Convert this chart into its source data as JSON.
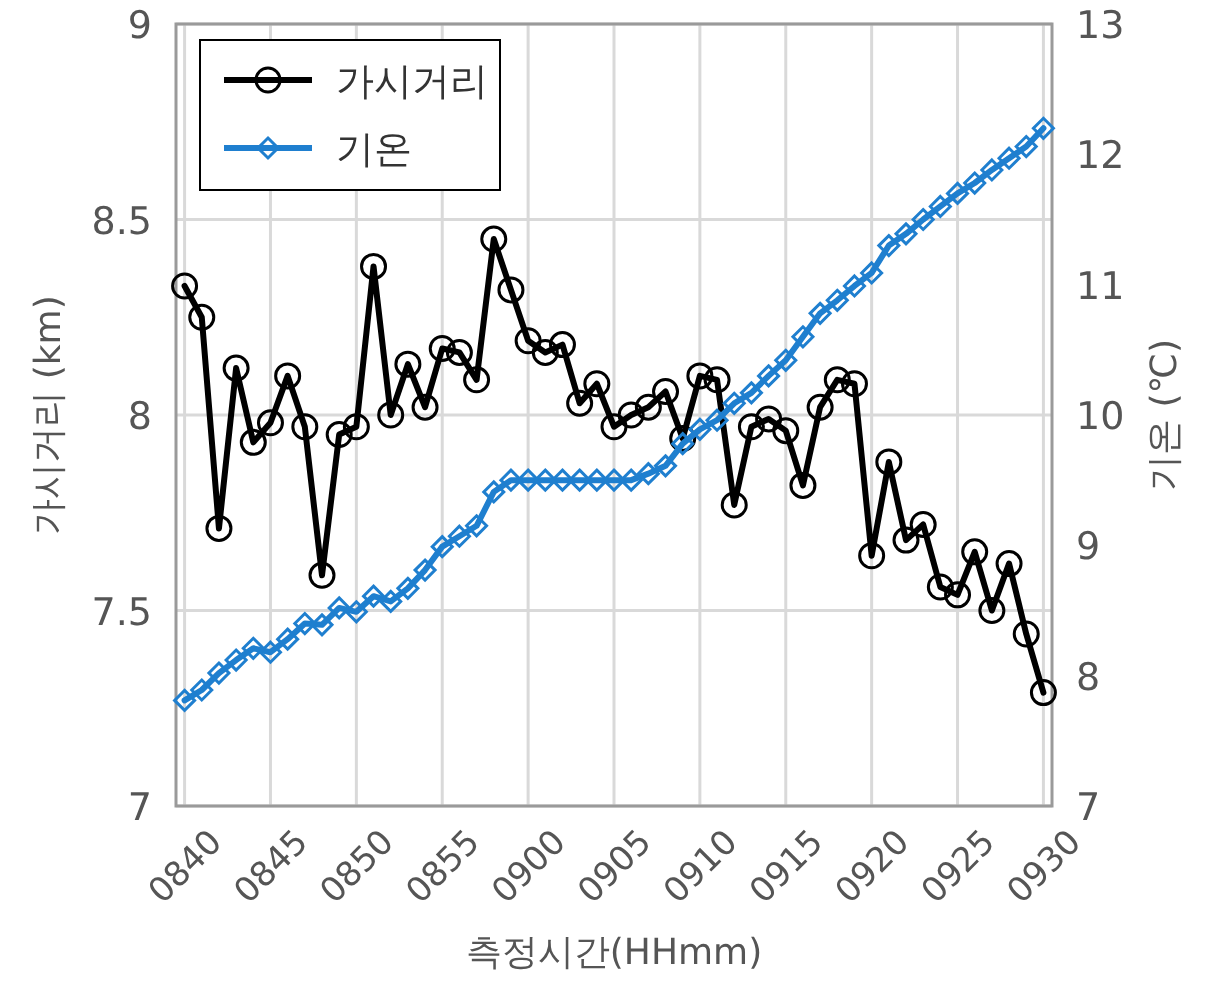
{
  "chart_data": {
    "type": "line",
    "xlabel": "측정시간(HHmm)",
    "ylabel": "가시거리 (km)",
    "y2label": "기온 (℃)",
    "categories": [
      "0840",
      null,
      null,
      null,
      null,
      "0845",
      null,
      null,
      null,
      null,
      "0850",
      null,
      null,
      null,
      null,
      "0855",
      null,
      null,
      null,
      null,
      "0900",
      null,
      null,
      null,
      null,
      "0905",
      null,
      null,
      null,
      null,
      "0910",
      null,
      null,
      null,
      null,
      "0915",
      null,
      null,
      null,
      null,
      "0920",
      null,
      null,
      null,
      null,
      "0925",
      null,
      null,
      null,
      null,
      "0930"
    ],
    "series": [
      {
        "name": "가시거리",
        "color": "#000000",
        "marker": "circle",
        "values": [
          8.33,
          8.25,
          7.71,
          8.12,
          7.93,
          7.98,
          8.1,
          7.97,
          7.59,
          7.95,
          7.97,
          8.38,
          8.0,
          8.13,
          8.02,
          8.17,
          8.16,
          8.09,
          8.45,
          8.32,
          8.19,
          8.16,
          8.18,
          8.03,
          8.08,
          7.97,
          8.0,
          8.02,
          8.06,
          7.94,
          8.1,
          8.09,
          7.77,
          7.97,
          7.99,
          7.96,
          7.82,
          8.02,
          8.09,
          8.08,
          7.64,
          7.88,
          7.68,
          7.72,
          7.56,
          7.54,
          7.65,
          7.5,
          7.62,
          7.44,
          7.29
        ]
      },
      {
        "name": "기온",
        "color": "#1f7fcf",
        "marker": "diamond",
        "axis": "y2",
        "values": [
          7.81,
          7.89,
          8.02,
          8.12,
          8.21,
          8.18,
          8.28,
          8.4,
          8.39,
          8.52,
          8.49,
          8.61,
          8.57,
          8.67,
          8.81,
          8.99,
          9.07,
          9.15,
          9.41,
          9.5,
          9.5,
          9.5,
          9.5,
          9.5,
          9.5,
          9.5,
          9.5,
          9.55,
          9.61,
          9.78,
          9.89,
          9.96,
          10.09,
          10.17,
          10.3,
          10.42,
          10.6,
          10.78,
          10.88,
          10.99,
          11.09,
          11.3,
          11.39,
          11.5,
          11.6,
          11.7,
          11.78,
          11.88,
          11.97,
          12.06,
          12.2
        ]
      }
    ],
    "ylim": [
      7,
      9
    ],
    "yticks": [
      7,
      7.5,
      8,
      8.5,
      9
    ],
    "y2lim": [
      7,
      13
    ],
    "y2ticks": [
      7,
      8,
      9,
      10,
      11,
      12,
      13
    ],
    "grid": true,
    "legend": "top left",
    "line_style": "solid"
  }
}
